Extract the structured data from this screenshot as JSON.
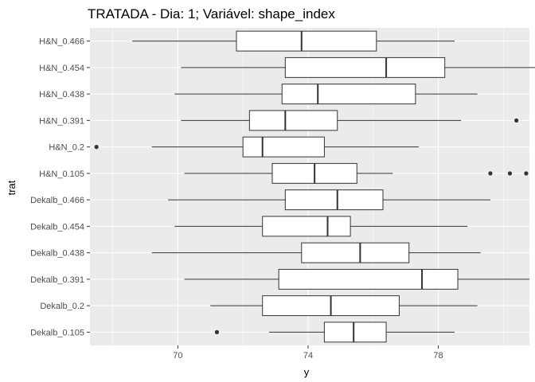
{
  "chart_data": {
    "type": "boxplot",
    "title": "TRATADA - Dia: 1; Variável: shape_index",
    "xlabel": "y",
    "ylabel": "trat",
    "xlim": [
      67.3,
      80.8
    ],
    "xticks": [
      70,
      74,
      78
    ],
    "xtick_labels": [
      "70",
      "74",
      "78"
    ],
    "grid": true,
    "categories": [
      "H&N_0.466",
      "H&N_0.454",
      "H&N_0.438",
      "H&N_0.391",
      "H&N_0.2",
      "H&N_0.105",
      "Dekalb_0.466",
      "Dekalb_0.454",
      "Dekalb_0.438",
      "Dekalb_0.391",
      "Dekalb_0.2",
      "Dekalb_0.105"
    ],
    "boxes": [
      {
        "trat": "H&N_0.466",
        "min": 68.6,
        "q1": 71.8,
        "median": 73.8,
        "q3": 76.1,
        "max": 78.5,
        "outliers": []
      },
      {
        "trat": "H&N_0.454",
        "min": 70.1,
        "q1": 73.3,
        "median": 76.4,
        "q3": 78.2,
        "max": 81.3,
        "outliers": []
      },
      {
        "trat": "H&N_0.438",
        "min": 69.9,
        "q1": 73.2,
        "median": 74.3,
        "q3": 77.3,
        "max": 79.2,
        "outliers": []
      },
      {
        "trat": "H&N_0.391",
        "min": 70.1,
        "q1": 72.2,
        "median": 73.3,
        "q3": 74.9,
        "max": 78.7,
        "outliers": [
          80.4
        ]
      },
      {
        "trat": "H&N_0.2",
        "min": 69.2,
        "q1": 72.0,
        "median": 72.6,
        "q3": 74.5,
        "max": 77.4,
        "outliers": [
          67.5
        ]
      },
      {
        "trat": "H&N_0.105",
        "min": 70.2,
        "q1": 72.9,
        "median": 74.2,
        "q3": 75.5,
        "max": 76.6,
        "outliers": [
          79.6,
          80.2,
          80.7
        ]
      },
      {
        "trat": "Dekalb_0.466",
        "min": 69.7,
        "q1": 73.3,
        "median": 74.9,
        "q3": 76.3,
        "max": 79.6,
        "outliers": []
      },
      {
        "trat": "Dekalb_0.454",
        "min": 69.9,
        "q1": 72.6,
        "median": 74.6,
        "q3": 75.3,
        "max": 78.9,
        "outliers": []
      },
      {
        "trat": "Dekalb_0.438",
        "min": 69.2,
        "q1": 73.8,
        "median": 75.6,
        "q3": 77.1,
        "max": 79.3,
        "outliers": []
      },
      {
        "trat": "Dekalb_0.391",
        "min": 70.2,
        "q1": 73.1,
        "median": 77.5,
        "q3": 78.6,
        "max": 80.8,
        "outliers": []
      },
      {
        "trat": "Dekalb_0.2",
        "min": 71.0,
        "q1": 72.6,
        "median": 74.7,
        "q3": 76.8,
        "max": 79.2,
        "outliers": []
      },
      {
        "trat": "Dekalb_0.105",
        "min": 72.8,
        "q1": 74.5,
        "median": 75.4,
        "q3": 76.4,
        "max": 78.5,
        "outliers": [
          71.2
        ]
      }
    ],
    "colors": {
      "panel": "#ebebeb",
      "grid_major": "#ffffff",
      "box_fill": "#ffffff",
      "box_stroke": "#333333",
      "outlier": "#333333"
    }
  }
}
